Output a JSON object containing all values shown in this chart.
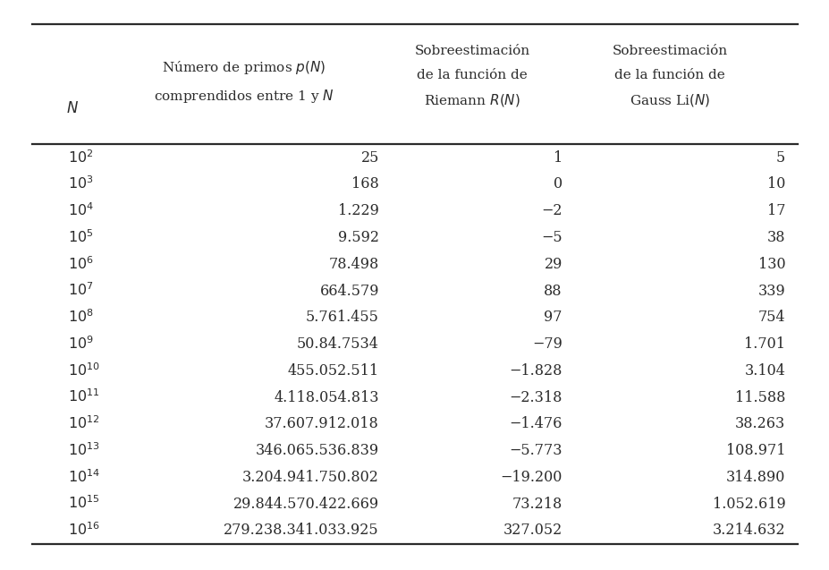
{
  "col0_exponents": [
    2,
    3,
    4,
    5,
    6,
    7,
    8,
    9,
    10,
    11,
    12,
    13,
    14,
    15,
    16
  ],
  "col1": [
    "25",
    "168",
    "1.229",
    "9.592",
    "78.498",
    "664.579",
    "5.761.455",
    "50.84.7534",
    "455.052.511",
    "4.118.054.813",
    "37.607.912.018",
    "346.065.536.839",
    "3.204.941.750.802",
    "29.844.570.422.669",
    "279.238.341.033.925"
  ],
  "col2": [
    "1",
    "0",
    "−2",
    "−5",
    "29",
    "88",
    "97",
    "−79",
    "−1.828",
    "−2.318",
    "−1.476",
    "−5.773",
    "−19.200",
    "73.218",
    "327.052"
  ],
  "col3": [
    "5",
    "10",
    "17",
    "38",
    "130",
    "339",
    "754",
    "1.701",
    "3.104",
    "11.588",
    "38.263",
    "108.971",
    "314.890",
    "1.052.619",
    "3.214.632"
  ],
  "bg_color": "#ffffff",
  "text_color": "#2b2b2b",
  "line_color": "#2b2b2b",
  "font_size_header": 11.0,
  "font_size_body": 11.5,
  "fig_width": 9.28,
  "fig_height": 6.37,
  "dpi": 100
}
